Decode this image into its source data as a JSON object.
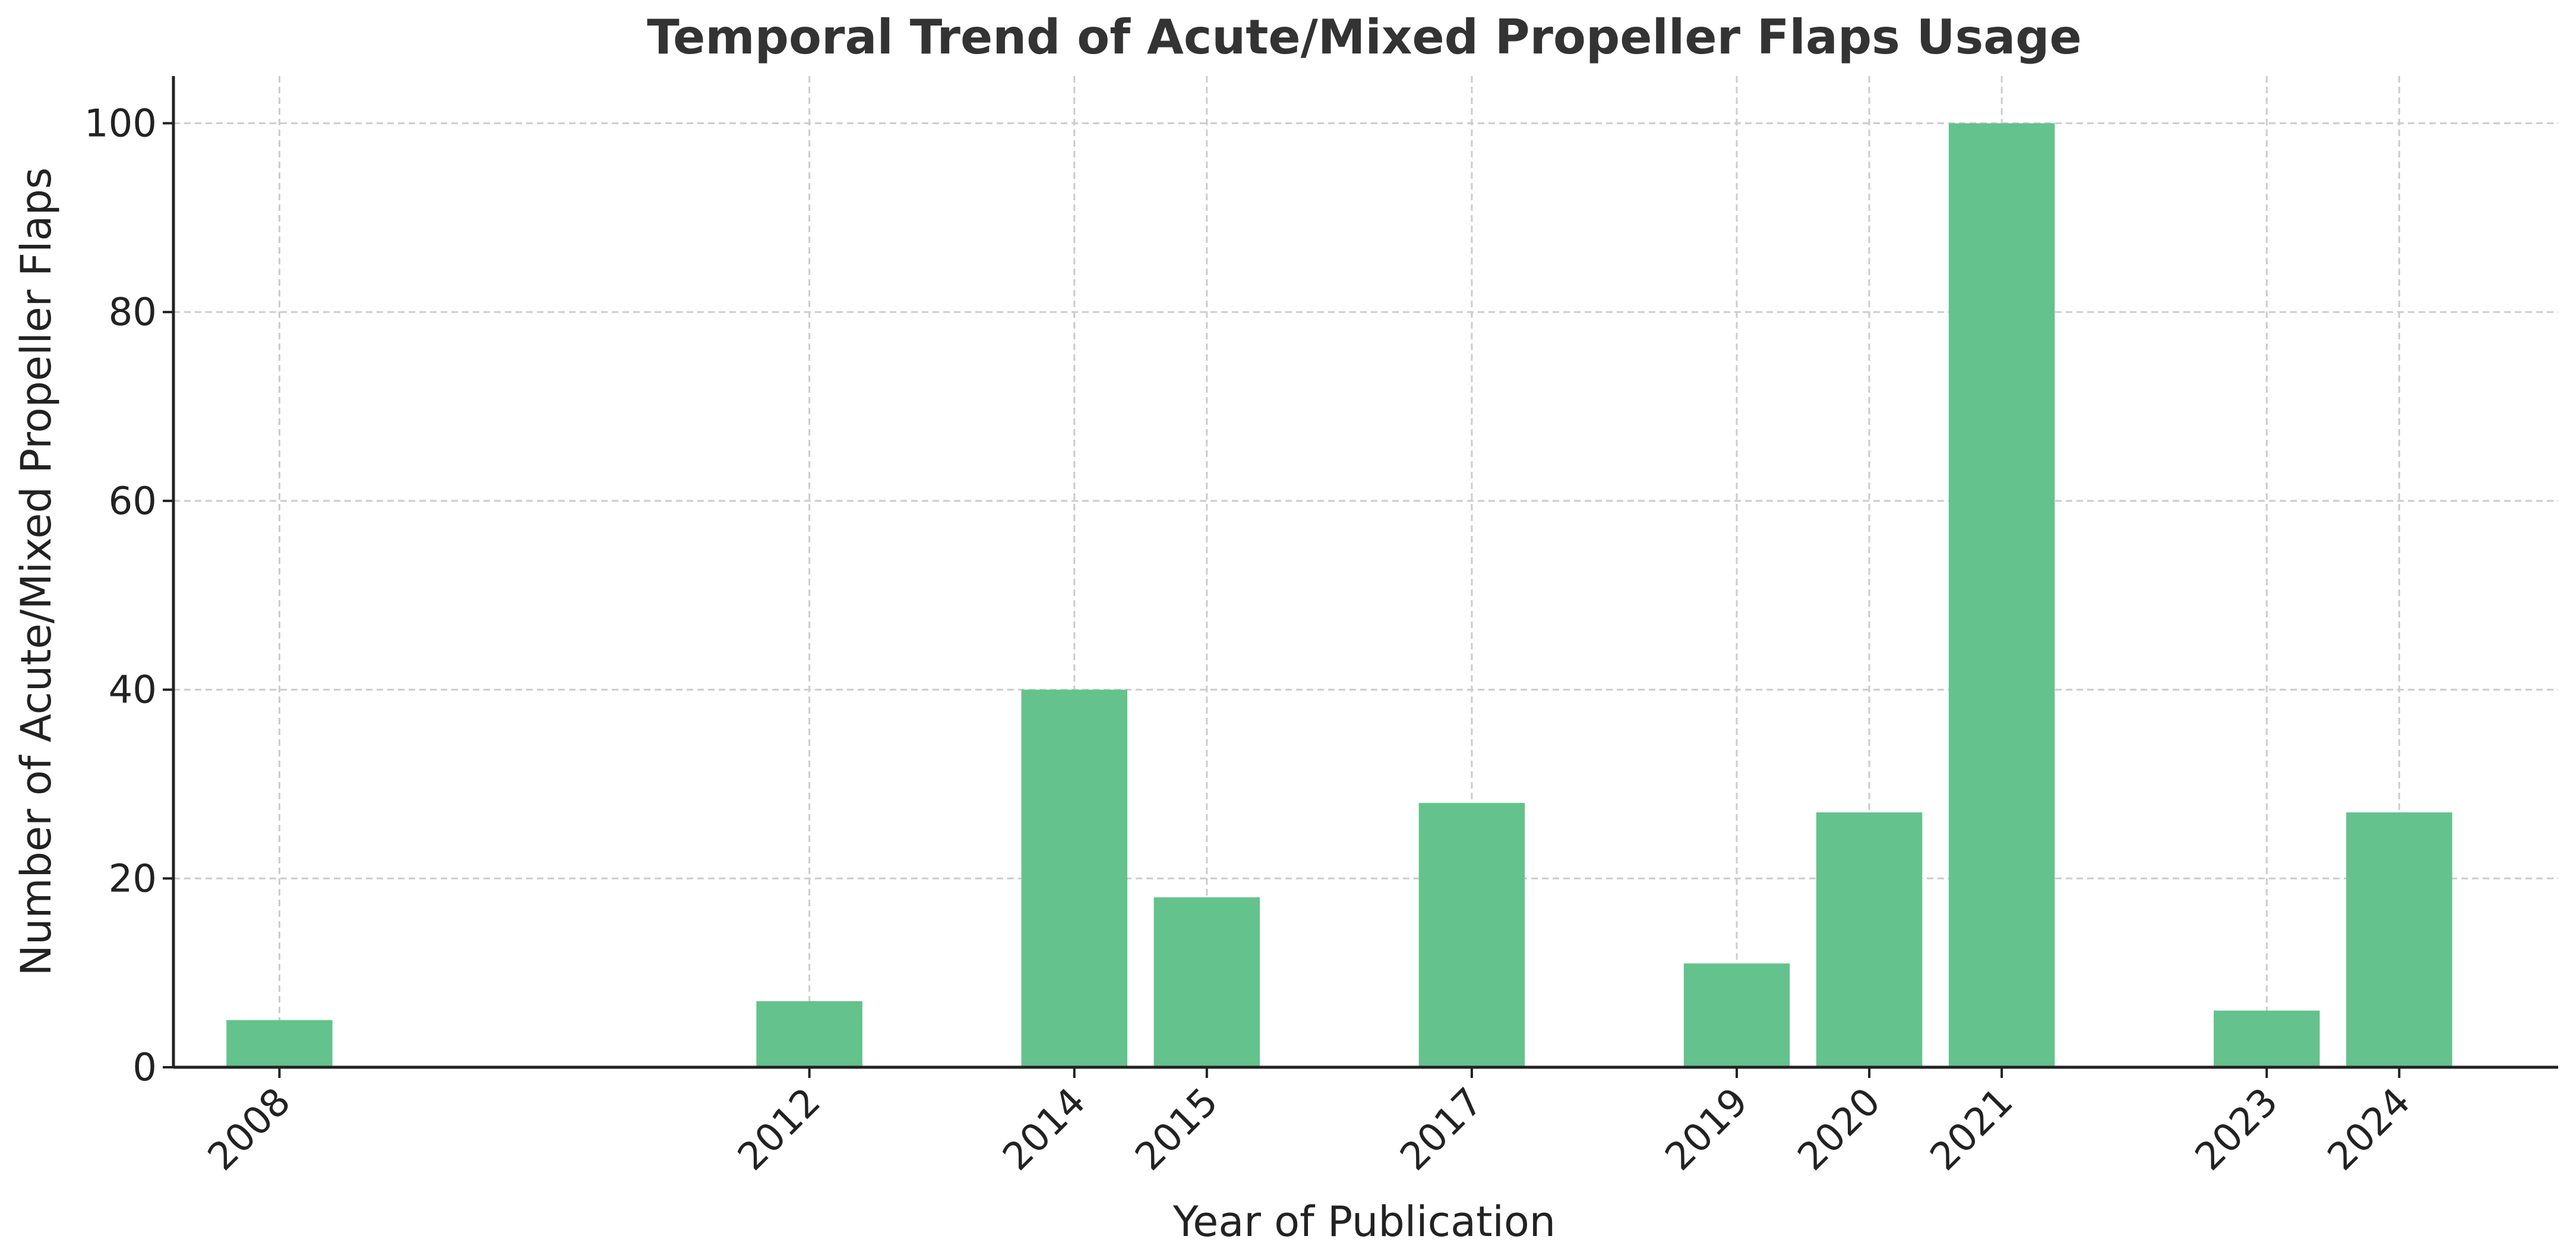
{
  "chart_data": {
    "type": "bar",
    "title": "Temporal Trend of Acute/Mixed Propeller Flaps Usage",
    "xlabel": "Year of Publication",
    "ylabel": "Number of Acute/Mixed Propeller Flaps",
    "x_axis_kind": "numeric-year",
    "xlim": [
      2007.2,
      2025.2
    ],
    "ylim": [
      0,
      105
    ],
    "x_ticks": [
      2008,
      2012,
      2014,
      2015,
      2017,
      2019,
      2020,
      2021,
      2023,
      2024
    ],
    "x_tick_labels": [
      "2008",
      "2012",
      "2014",
      "2015",
      "2017",
      "2019",
      "2020",
      "2021",
      "2023",
      "2024"
    ],
    "x_tick_rotation_deg": 45,
    "y_ticks": [
      0,
      20,
      40,
      60,
      80,
      100
    ],
    "y_tick_labels": [
      "0",
      "20",
      "40",
      "60",
      "80",
      "100"
    ],
    "categories": [
      "2008",
      "2012",
      "2014",
      "2015",
      "2017",
      "2019",
      "2020",
      "2021",
      "2023",
      "2024"
    ],
    "values": [
      5,
      7,
      40,
      18,
      28,
      11,
      27,
      100,
      6,
      27
    ],
    "bar_width_years": 0.8,
    "grid": true,
    "grid_style": "dashed",
    "legend": "none",
    "colors": {
      "bar": "#64c28c",
      "grid": "#cccccc",
      "axis": "#222222",
      "text": "#222222",
      "title": "#333333"
    }
  }
}
